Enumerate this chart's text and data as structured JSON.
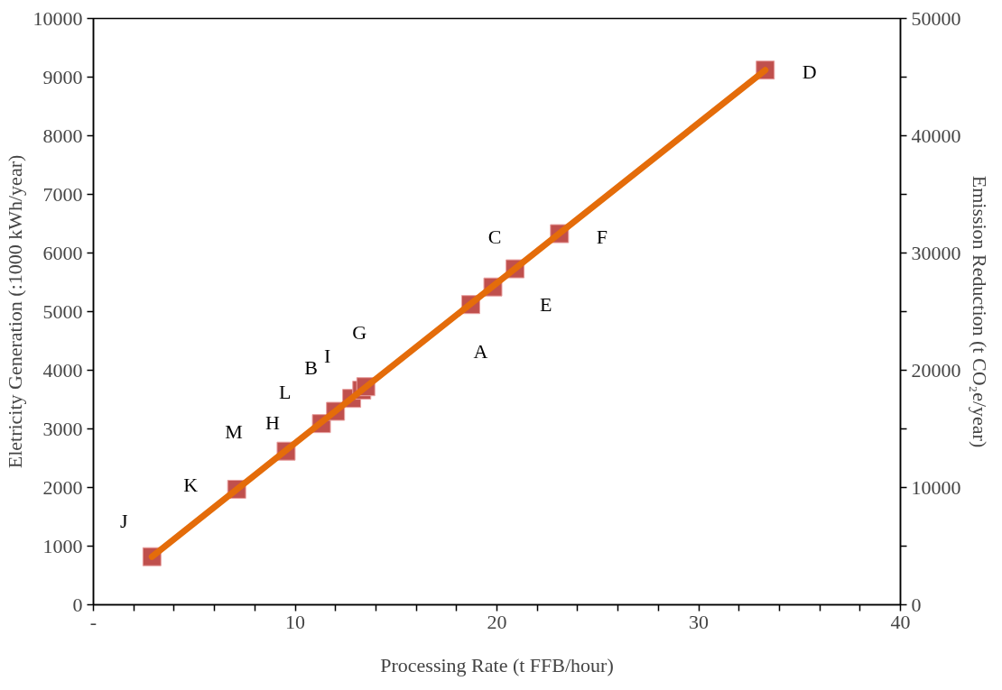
{
  "chart_data": {
    "type": "scatter",
    "xlabel": "Processing Rate (t FFB/hour)",
    "ylabel": "Eletricity Generation (:1000 kWh/year)",
    "y2label": "Emission Reduction (t CO₂e/year)",
    "xlim": [
      0,
      40
    ],
    "xticks": [
      {
        "value": 0,
        "label": "-"
      },
      {
        "value": 2,
        "label": null
      },
      {
        "value": 4,
        "label": null
      },
      {
        "value": 6,
        "label": null
      },
      {
        "value": 8,
        "label": null
      },
      10,
      {
        "value": 12,
        "label": null
      },
      {
        "value": 14,
        "label": null
      },
      {
        "value": 16,
        "label": null
      },
      {
        "value": 18,
        "label": null
      },
      20,
      {
        "value": 22,
        "label": null
      },
      {
        "value": 24,
        "label": null
      },
      {
        "value": 26,
        "label": null
      },
      {
        "value": 28,
        "label": null
      },
      30,
      {
        "value": 32,
        "label": null
      },
      {
        "value": 34,
        "label": null
      },
      {
        "value": 36,
        "label": null
      },
      {
        "value": 38,
        "label": null
      },
      40
    ],
    "ylim": [
      0,
      10000
    ],
    "yticks": [
      0,
      1000,
      2000,
      3000,
      4000,
      5000,
      6000,
      7000,
      8000,
      9000,
      10000
    ],
    "y2lim": [
      0,
      50000
    ],
    "y2ticks": [
      0,
      {
        "value": 5000,
        "label": null
      },
      10000,
      {
        "value": 15000,
        "label": null
      },
      20000,
      {
        "value": 25000,
        "label": null
      },
      30000,
      {
        "value": 35000,
        "label": null
      },
      40000,
      {
        "value": 45000,
        "label": null
      },
      50000
    ],
    "grid": false,
    "marker": "square",
    "series": [
      {
        "type": "scatter",
        "color": "#c0504d",
        "x": [
          2.9,
          7.1,
          9.55,
          11.3,
          12.0,
          12.8,
          13.3,
          13.5,
          18.7,
          19.8,
          20.9,
          23.1,
          33.3
        ],
        "values": [
          820,
          1970,
          2620,
          3090,
          3300,
          3520,
          3660,
          3720,
          5120,
          5420,
          5730,
          6330,
          9120
        ]
      },
      {
        "type": "line",
        "color": "#e46c0a",
        "marker": "none",
        "line_style": "solid",
        "x": [
          2.9,
          33.3
        ],
        "values": [
          820,
          9120
        ]
      }
    ],
    "annotations": [
      {
        "text": "J",
        "x": 2.9,
        "y": 820
      },
      {
        "text": "K",
        "x": 7.1,
        "y": 1970
      },
      {
        "text": "M",
        "x": 9.55,
        "y": 2620
      },
      {
        "text": "H",
        "x": 11.3,
        "y": 3090
      },
      {
        "text": "L",
        "x": 12.0,
        "y": 3300
      },
      {
        "text": "B",
        "x": 12.8,
        "y": 3520
      },
      {
        "text": "I",
        "x": 13.3,
        "y": 3660
      },
      {
        "text": "G",
        "x": 13.5,
        "y": 3720
      },
      {
        "text": "A",
        "x": 18.7,
        "y": 5120
      },
      {
        "text": "E",
        "x": 20.9,
        "y": 5730
      },
      {
        "text": "C",
        "x": 19.8,
        "y": 5420
      },
      {
        "text": "F",
        "x": 23.1,
        "y": 6330
      },
      {
        "text": "D",
        "x": 33.3,
        "y": 9120
      }
    ]
  }
}
